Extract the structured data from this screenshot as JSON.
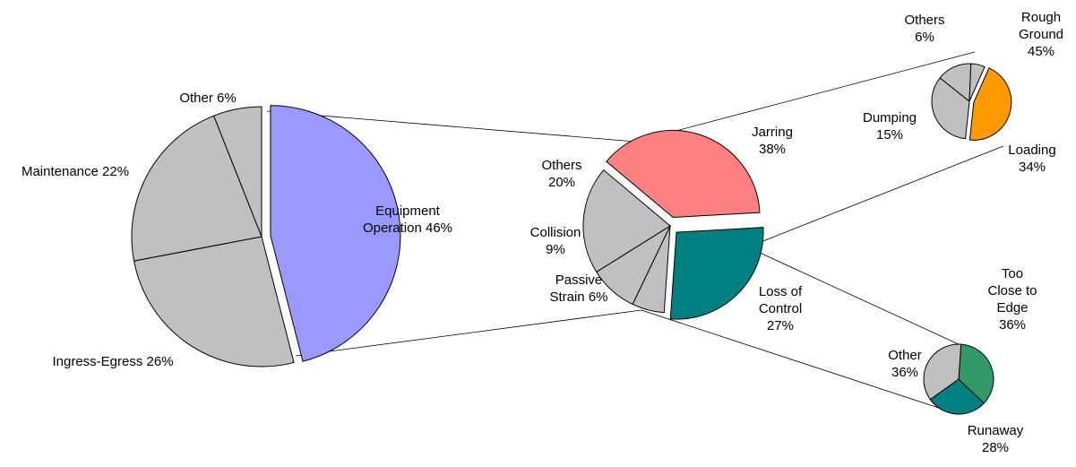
{
  "chart_data": [
    {
      "type": "pie",
      "slices": [
        {
          "label": "Equipment Operation 46%",
          "value": 46,
          "color": "#9999FF",
          "exploded": true
        },
        {
          "label": "Ingress-Egress 26%",
          "value": 26,
          "color": "#C0C0C0"
        },
        {
          "label": "Maintenance 22%",
          "value": 22,
          "color": "#C0C0C0"
        },
        {
          "label": "Other 6%",
          "value": 6,
          "color": "#C0C0C0"
        }
      ]
    },
    {
      "type": "pie",
      "slices": [
        {
          "label": "Jarring 38%",
          "value": 38,
          "color": "#FF8080",
          "exploded": true
        },
        {
          "label": "Loss of Control 27%",
          "value": 27,
          "color": "#008080",
          "exploded": true
        },
        {
          "label": "Passive Strain 6%",
          "value": 6,
          "color": "#C0C0C0"
        },
        {
          "label": "Collision 9%",
          "value": 9,
          "color": "#C0C0C0"
        },
        {
          "label": "Others 20%",
          "value": 20,
          "color": "#C0C0C0"
        }
      ]
    },
    {
      "type": "pie",
      "slices": [
        {
          "label": "Rough Ground 45%",
          "value": 45,
          "color": "#FF9900",
          "exploded": true
        },
        {
          "label": "Loading 34%",
          "value": 34,
          "color": "#C0C0C0"
        },
        {
          "label": "Dumping 15%",
          "value": 15,
          "color": "#C0C0C0"
        },
        {
          "label": "Others 6%",
          "value": 6,
          "color": "#C0C0C0"
        }
      ]
    },
    {
      "type": "pie",
      "slices": [
        {
          "label": "Too Close to Edge 36%",
          "value": 36,
          "color": "#339966"
        },
        {
          "label": "Runaway 28%",
          "value": 28,
          "color": "#008080"
        },
        {
          "label": "Other 36%",
          "value": 36,
          "color": "#C0C0C0"
        }
      ]
    }
  ]
}
